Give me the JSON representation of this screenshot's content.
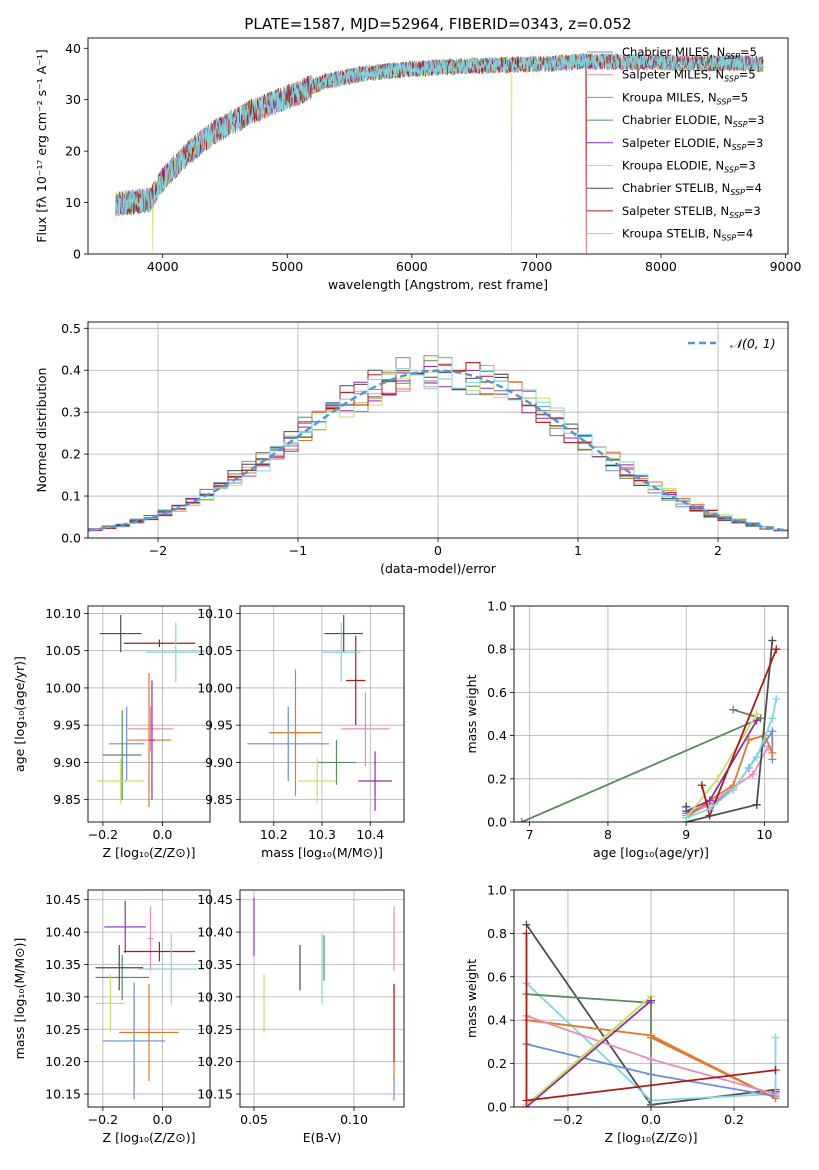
{
  "figure": {
    "title": "PLATE=1587, MJD=52964, FIBERID=0343, z=0.052"
  },
  "colors": {
    "chabrier_miles": "#6c8ed6",
    "salpeter_miles": "#e88cbe",
    "kroupa_miles": "#e07a2e",
    "chabrier_elodie": "#5b8a5e",
    "salpeter_elodie": "#8e2fb0",
    "kroupa_elodie": "#c7e060",
    "chabrier_stelib": "#4d4d4d",
    "salpeter_stelib": "#b01818",
    "kroupa_stelib": "#7fd8df",
    "normal": "#5b8fd8"
  },
  "chart_data": [
    {
      "id": "spectrum",
      "type": "line",
      "xlabel": "wavelength [Angstrom, rest frame]",
      "ylabel": "Flux [fλ 10⁻¹⁷ erg cm⁻² s⁻¹ A⁻¹]",
      "xlim": [
        3400,
        9020
      ],
      "ylim": [
        0,
        42
      ],
      "xticks": [
        4000,
        5000,
        6000,
        7000,
        8000,
        9000
      ],
      "yticks": [
        0,
        10,
        20,
        30,
        40
      ],
      "legend_position": "top-right",
      "continuum_x": [
        3620,
        3900,
        4000,
        4200,
        4400,
        4700,
        5000,
        5300,
        5600,
        6000,
        6400,
        6800,
        7100,
        7400,
        7700,
        8000,
        8300,
        8600,
        8800
      ],
      "continuum_y": [
        9.8,
        10.5,
        14.5,
        19.5,
        23.5,
        27.5,
        30.5,
        33.5,
        35.0,
        36.0,
        36.5,
        36.8,
        37.0,
        37.5,
        37.3,
        37.3,
        37.0,
        37.2,
        37.0
      ],
      "legend": [
        {
          "label": "Chabrier MILES, N",
          "sub": "SSP",
          "val": "=5",
          "color_key": "chabrier_miles"
        },
        {
          "label": "Salpeter MILES, N",
          "sub": "SSP",
          "val": "=5",
          "color_key": "salpeter_miles"
        },
        {
          "label": "Kroupa MILES, N",
          "sub": "SSP",
          "val": "=5",
          "color_key": "kroupa_miles"
        },
        {
          "label": "Chabrier ELODIE, N",
          "sub": "SSP",
          "val": "=3",
          "color_key": "chabrier_elodie"
        },
        {
          "label": "Salpeter ELODIE, N",
          "sub": "SSP",
          "val": "=3",
          "color_key": "salpeter_elodie"
        },
        {
          "label": "Kroupa ELODIE, N",
          "sub": "SSP",
          "val": "=3",
          "color_key": "kroupa_elodie"
        },
        {
          "label": "Chabrier STELIB, N",
          "sub": "SSP",
          "val": "=4",
          "color_key": "chabrier_stelib"
        },
        {
          "label": "Salpeter STELIB, N",
          "sub": "SSP",
          "val": "=3",
          "color_key": "salpeter_stelib"
        },
        {
          "label": "Kroupa STELIB, N",
          "sub": "SSP",
          "val": "=4",
          "color_key": "kroupa_stelib"
        }
      ]
    },
    {
      "id": "residuals",
      "type": "line",
      "xlabel": "(data-model)/error",
      "ylabel": "Normed distribution",
      "xlim": [
        -2.5,
        2.5
      ],
      "ylim": [
        0,
        0.515
      ],
      "xticks": [
        -2,
        -1,
        0,
        1,
        2
      ],
      "yticks": [
        0.0,
        0.1,
        0.2,
        0.3,
        0.4,
        0.5
      ],
      "xtick_labels": [
        "−2",
        "−1",
        "0",
        "1",
        "2"
      ],
      "ytick_labels": [
        "0.0",
        "0.1",
        "0.2",
        "0.3",
        "0.4",
        "0.5"
      ],
      "bin_width": 0.1,
      "grid": true,
      "legend": {
        "label": "𝒩(0, 1)",
        "position": "top-right"
      }
    },
    {
      "id": "age_vs_Z",
      "type": "scatter",
      "xlabel": "Z [log₁₀(Z/Z⊙)]",
      "ylabel": "age  [log₁₀(age/yr)]",
      "xlim": [
        -0.25,
        0.16
      ],
      "ylim": [
        9.82,
        10.11
      ],
      "xticks": [
        -0.2,
        0.0
      ],
      "xtick_labels": [
        "−0.2",
        "0.0"
      ],
      "yticks": [
        9.85,
        9.9,
        9.95,
        10.0,
        10.05,
        10.1
      ],
      "ytick_labels": [
        "9.85",
        "9.90",
        "9.95",
        "10.00",
        "10.05",
        "10.10"
      ],
      "points": [
        {
          "model": "chabrier_miles",
          "x": -0.12,
          "y": 9.925,
          "xerr": 0.06,
          "yerr": 0.05
        },
        {
          "model": "salpeter_miles",
          "x": -0.04,
          "y": 9.945,
          "xerr": 0.075,
          "yerr": 0.03
        },
        {
          "model": "kroupa_miles",
          "x": -0.045,
          "y": 9.93,
          "xerr": 0.075,
          "yerr": 0.09
        },
        {
          "model": "chabrier_elodie",
          "x": -0.135,
          "y": 9.91,
          "xerr": 0.065,
          "yerr": 0.06
        },
        {
          "model": "salpeter_elodie",
          "x": -0.035,
          "y": 9.93,
          "xerr": 0.01,
          "yerr": 0.08
        },
        {
          "model": "kroupa_elodie",
          "x": -0.14,
          "y": 9.875,
          "xerr": 0.08,
          "yerr": 0.03
        },
        {
          "model": "chabrier_stelib",
          "x": -0.14,
          "y": 10.073,
          "xerr": 0.07,
          "yerr": 0.025
        },
        {
          "model": "salpeter_stelib",
          "x": -0.01,
          "y": 10.06,
          "xerr": 0.12,
          "yerr": 0.005
        },
        {
          "model": "kroupa_stelib",
          "x": 0.045,
          "y": 10.048,
          "xerr": 0.1,
          "yerr": 0.04
        }
      ]
    },
    {
      "id": "age_vs_mass",
      "type": "scatter",
      "xlabel": "mass [log₁₀(M/M⊙)]",
      "ylabel": "",
      "xlim": [
        10.13,
        10.47
      ],
      "ylim": [
        9.82,
        10.11
      ],
      "xticks": [
        10.2,
        10.3,
        10.4
      ],
      "xtick_labels": [
        "10.2",
        "10.3",
        "10.4"
      ],
      "yticks": [
        9.85,
        9.9,
        9.95,
        10.0,
        10.05,
        10.1
      ],
      "ytick_labels": [
        "9.85",
        "9.90",
        "9.95",
        "10.00",
        "10.05",
        "10.10"
      ],
      "points": [
        {
          "model": "chabrier_miles",
          "x": 10.23,
          "y": 9.925,
          "xerr": 0.085,
          "yerr": 0.05
        },
        {
          "model": "salpeter_miles",
          "x": 10.39,
          "y": 9.945,
          "xerr": 0.05,
          "yerr": 0.05
        },
        {
          "model": "kroupa_miles",
          "x": 10.245,
          "y": 9.94,
          "xerr": 0.055,
          "yerr": 0.085
        },
        {
          "model": "chabrier_elodie",
          "x": 10.33,
          "y": 9.9,
          "xerr": 0.04,
          "yerr": 0.03
        },
        {
          "model": "salpeter_elodie",
          "x": 10.41,
          "y": 9.875,
          "xerr": 0.035,
          "yerr": 0.04
        },
        {
          "model": "kroupa_elodie",
          "x": 10.29,
          "y": 9.875,
          "xerr": 0.04,
          "yerr": 0.03
        },
        {
          "model": "chabrier_stelib",
          "x": 10.345,
          "y": 10.073,
          "xerr": 0.04,
          "yerr": 0.025
        },
        {
          "model": "salpeter_stelib",
          "x": 10.37,
          "y": 10.01,
          "xerr": 0.02,
          "yerr": 0.06
        },
        {
          "model": "kroupa_stelib",
          "x": 10.34,
          "y": 10.048,
          "xerr": 0.04,
          "yerr": 0.04
        }
      ]
    },
    {
      "id": "mass_weight_vs_age",
      "type": "line",
      "xlabel": "age  [log₁₀(age/yr)]",
      "ylabel": "mass weight",
      "xlim": [
        6.8,
        10.3
      ],
      "ylim": [
        0,
        1.0
      ],
      "xticks": [
        7,
        8,
        9,
        10
      ],
      "xtick_labels": [
        "7",
        "8",
        "9",
        "10"
      ],
      "yticks": [
        0.0,
        0.2,
        0.4,
        0.6,
        0.8,
        1.0
      ],
      "ytick_labels": [
        "0.0",
        "0.2",
        "0.4",
        "0.6",
        "0.8",
        "1.0"
      ],
      "series": [
        {
          "model": "chabrier_elodie",
          "x": [
            6.9,
            9.95,
            9.6
          ],
          "y": [
            0.0,
            0.48,
            0.52
          ]
        },
        {
          "model": "chabrier_miles",
          "x": [
            9.0,
            9.4,
            9.6,
            9.8,
            10.1,
            10.1
          ],
          "y": [
            0.04,
            0.1,
            0.15,
            0.25,
            0.42,
            0.29
          ]
        },
        {
          "model": "salpeter_miles",
          "x": [
            9.0,
            9.3,
            9.6,
            9.85,
            10.05
          ],
          "y": [
            0.03,
            0.08,
            0.16,
            0.22,
            0.35
          ]
        },
        {
          "model": "kroupa_miles",
          "x": [
            9.0,
            9.3,
            9.6,
            9.8,
            10.0,
            10.1
          ],
          "y": [
            0.02,
            0.1,
            0.17,
            0.38,
            0.4,
            0.32
          ]
        },
        {
          "model": "salpeter_elodie",
          "x": [
            9.0,
            9.3,
            9.9
          ],
          "y": [
            0.05,
            0.1,
            0.47
          ]
        },
        {
          "model": "kroupa_elodie",
          "x": [
            9.0,
            9.4,
            9.9
          ],
          "y": [
            0.02,
            0.2,
            0.5
          ]
        },
        {
          "model": "chabrier_stelib",
          "x": [
            9.0,
            9.9,
            10.1,
            9.9
          ],
          "y": [
            0.0,
            0.08,
            0.84,
            0.08
          ]
        },
        {
          "model": "salpeter_stelib",
          "x": [
            9.2,
            9.3,
            10.15
          ],
          "y": [
            0.17,
            0.03,
            0.8
          ]
        },
        {
          "model": "kroupa_stelib",
          "x": [
            9.0,
            9.3,
            9.6,
            9.9,
            10.1,
            10.15
          ],
          "y": [
            0.02,
            0.06,
            0.15,
            0.3,
            0.48,
            0.57
          ]
        },
        {
          "model": "chabrier_stelib",
          "x": [
            9.0,
            9.0
          ],
          "y": [
            0.07,
            0.07
          ]
        }
      ]
    },
    {
      "id": "mass_vs_Z",
      "type": "scatter",
      "xlabel": "Z [log₁₀(Z/Z⊙)]",
      "ylabel": "mass [log₁₀(M/M⊙)]",
      "xlim": [
        -0.25,
        0.16
      ],
      "ylim": [
        10.13,
        10.465
      ],
      "xticks": [
        -0.2,
        0.0
      ],
      "xtick_labels": [
        "−0.2",
        "0.0"
      ],
      "yticks": [
        10.15,
        10.2,
        10.25,
        10.3,
        10.35,
        10.4,
        10.45
      ],
      "ytick_labels": [
        "10.15",
        "10.20",
        "10.25",
        "10.30",
        "10.35",
        "10.40",
        "10.45"
      ],
      "points": [
        {
          "model": "chabrier_miles",
          "x": -0.095,
          "y": 10.232,
          "xerr": 0.105,
          "yerr": 0.09
        },
        {
          "model": "salpeter_miles",
          "x": -0.04,
          "y": 10.39,
          "xerr": 0.01,
          "yerr": 0.05
        },
        {
          "model": "kroupa_miles",
          "x": -0.045,
          "y": 10.245,
          "xerr": 0.1,
          "yerr": 0.075
        },
        {
          "model": "chabrier_elodie",
          "x": -0.135,
          "y": 10.33,
          "xerr": 0.09,
          "yerr": 0.035
        },
        {
          "model": "salpeter_elodie",
          "x": -0.125,
          "y": 10.408,
          "xerr": 0.07,
          "yerr": 0.04
        },
        {
          "model": "kroupa_elodie",
          "x": -0.175,
          "y": 10.29,
          "xerr": 0.05,
          "yerr": 0.045
        },
        {
          "model": "chabrier_stelib",
          "x": -0.145,
          "y": 10.345,
          "xerr": 0.08,
          "yerr": 0.035
        },
        {
          "model": "salpeter_stelib",
          "x": -0.01,
          "y": 10.37,
          "xerr": 0.12,
          "yerr": 0.015
        },
        {
          "model": "kroupa_stelib",
          "x": 0.03,
          "y": 10.343,
          "xerr": 0.11,
          "yerr": 0.055
        }
      ]
    },
    {
      "id": "mass_vs_ebv",
      "type": "scatter",
      "xlabel": "E(B-V)",
      "ylabel": "",
      "xlim": [
        0.043,
        0.125
      ],
      "ylim": [
        10.13,
        10.465
      ],
      "xticks": [
        0.05,
        0.1
      ],
      "xtick_labels": [
        "0.05",
        "0.10"
      ],
      "yticks": [
        10.15,
        10.2,
        10.25,
        10.3,
        10.35,
        10.4,
        10.45
      ],
      "ytick_labels": [
        "10.15",
        "10.20",
        "10.25",
        "10.30",
        "10.35",
        "10.40",
        "10.45"
      ],
      "points": [
        {
          "model": "chabrier_miles",
          "x": 0.12,
          "y": 10.16,
          "xerr": 0.0,
          "yerr": 0.02
        },
        {
          "model": "salpeter_miles",
          "x": 0.12,
          "y": 10.39,
          "xerr": 0.0,
          "yerr": 0.05
        },
        {
          "model": "kroupa_miles",
          "x": 0.12,
          "y": 10.245,
          "xerr": 0.0,
          "yerr": 0.075
        },
        {
          "model": "chabrier_elodie",
          "x": 0.085,
          "y": 10.36,
          "xerr": 0.0,
          "yerr": 0.035
        },
        {
          "model": "salpeter_elodie",
          "x": 0.05,
          "y": 10.408,
          "xerr": 0.0,
          "yerr": 0.045
        },
        {
          "model": "kroupa_elodie",
          "x": 0.055,
          "y": 10.29,
          "xerr": 0.0,
          "yerr": 0.045
        },
        {
          "model": "chabrier_stelib",
          "x": 0.073,
          "y": 10.345,
          "xerr": 0.0,
          "yerr": 0.035
        },
        {
          "model": "salpeter_stelib",
          "x": 0.12,
          "y": 10.26,
          "xerr": 0.0,
          "yerr": 0.06
        },
        {
          "model": "kroupa_stelib",
          "x": 0.084,
          "y": 10.343,
          "xerr": 0.0,
          "yerr": 0.055
        }
      ]
    },
    {
      "id": "mass_weight_vs_Z",
      "type": "line",
      "xlabel": "Z [log₁₀(Z/Z⊙)]",
      "ylabel": "mass weight",
      "xlim": [
        -0.33,
        0.33
      ],
      "ylim": [
        0,
        1.0
      ],
      "xticks": [
        -0.2,
        0.0,
        0.2
      ],
      "xtick_labels": [
        "−0.2",
        "0.0",
        "0.2"
      ],
      "yticks": [
        0.0,
        0.2,
        0.4,
        0.6,
        0.8,
        1.0
      ],
      "ytick_labels": [
        "0.0",
        "0.2",
        "0.4",
        "0.6",
        "0.8",
        "1.0"
      ],
      "series": [
        {
          "model": "chabrier_stelib",
          "x": [
            -0.3,
            0.0,
            0.3,
            0.3
          ],
          "y": [
            0.84,
            0.01,
            0.08,
            0.07
          ]
        },
        {
          "model": "kroupa_stelib",
          "x": [
            -0.3,
            0.0,
            0.3,
            0.3
          ],
          "y": [
            0.57,
            0.03,
            0.06,
            0.32
          ]
        },
        {
          "model": "chabrier_elodie",
          "x": [
            -0.3,
            0.0,
            0.0
          ],
          "y": [
            0.52,
            0.48,
            0.0
          ]
        },
        {
          "model": "kroupa_miles",
          "x": [
            -0.3,
            0.0,
            0.3,
            0.0
          ],
          "y": [
            0.4,
            0.33,
            0.04,
            0.32
          ]
        },
        {
          "model": "chabrier_miles",
          "x": [
            -0.3,
            0.0,
            0.3
          ],
          "y": [
            0.29,
            0.15,
            0.05
          ]
        },
        {
          "model": "salpeter_miles",
          "x": [
            -0.3,
            0.0,
            0.3
          ],
          "y": [
            0.42,
            0.22,
            0.06
          ]
        },
        {
          "model": "kroupa_elodie",
          "x": [
            -0.3,
            0.0,
            -0.3
          ],
          "y": [
            0.0,
            0.51,
            0.01
          ]
        },
        {
          "model": "salpeter_elodie",
          "x": [
            -0.3,
            0.0
          ],
          "y": [
            0.0,
            0.49
          ]
        },
        {
          "model": "salpeter_stelib",
          "x": [
            -0.3,
            -0.3,
            0.3
          ],
          "y": [
            0.8,
            0.03,
            0.17
          ]
        }
      ]
    }
  ]
}
